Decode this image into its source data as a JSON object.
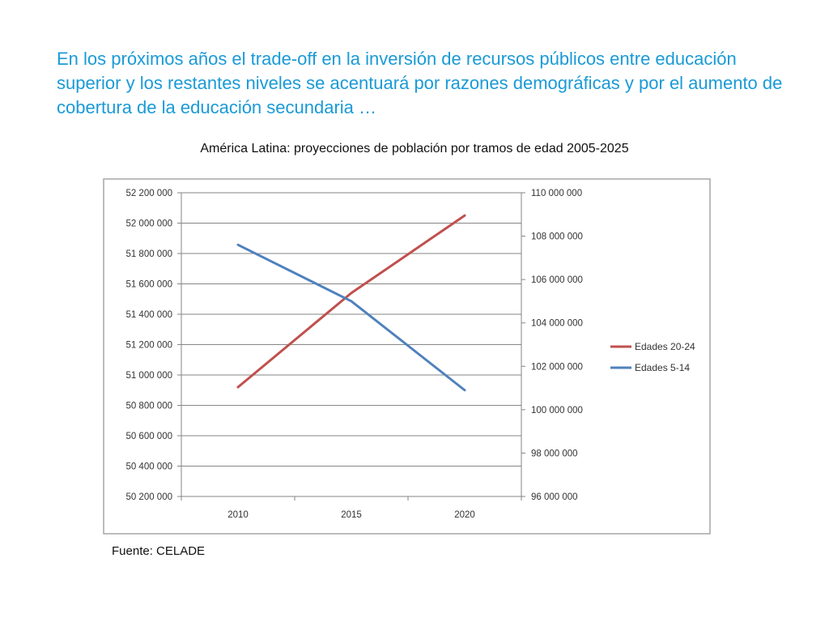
{
  "slide": {
    "headline": "En los próximos años el trade-off en la inversión de recursos públicos entre educación superior y los restantes niveles se acentuará por razones demográficas y por el aumento de cobertura de la educación secundaria …",
    "subtitle": "América Latina: proyecciones de población por tramos de edad 2005-2025",
    "source": "Fuente: CELADE"
  },
  "chart_data": {
    "type": "line",
    "title": "",
    "xlabel": "",
    "ylabel": "",
    "categories": [
      "2010",
      "2015",
      "2020"
    ],
    "y_left": {
      "min": 50200000,
      "max": 52200000,
      "step": 200000,
      "tick_labels": [
        "50 200 000",
        "50 400 000",
        "50 600 000",
        "50 800 000",
        "51 000 000",
        "51 200 000",
        "51 400 000",
        "51 600 000",
        "51 800 000",
        "52 000 000",
        "52 200 000"
      ]
    },
    "y_right": {
      "min": 96000000,
      "max": 110000000,
      "step": 2000000,
      "tick_labels": [
        "96 000 000",
        "98 000 000",
        "100 000 000",
        "102 000 000",
        "104 000 000",
        "106 000 000",
        "108 000 000",
        "110 000 000"
      ]
    },
    "series": [
      {
        "name": "Edades 20-24",
        "axis": "left",
        "color": "#c0504d",
        "values": [
          50920000,
          51540000,
          52050000
        ]
      },
      {
        "name": "Edades 5-14",
        "axis": "right",
        "color": "#4f81bd",
        "values": [
          107600000,
          105000000,
          100900000
        ]
      }
    ],
    "grid": true,
    "legend_position": "right"
  }
}
